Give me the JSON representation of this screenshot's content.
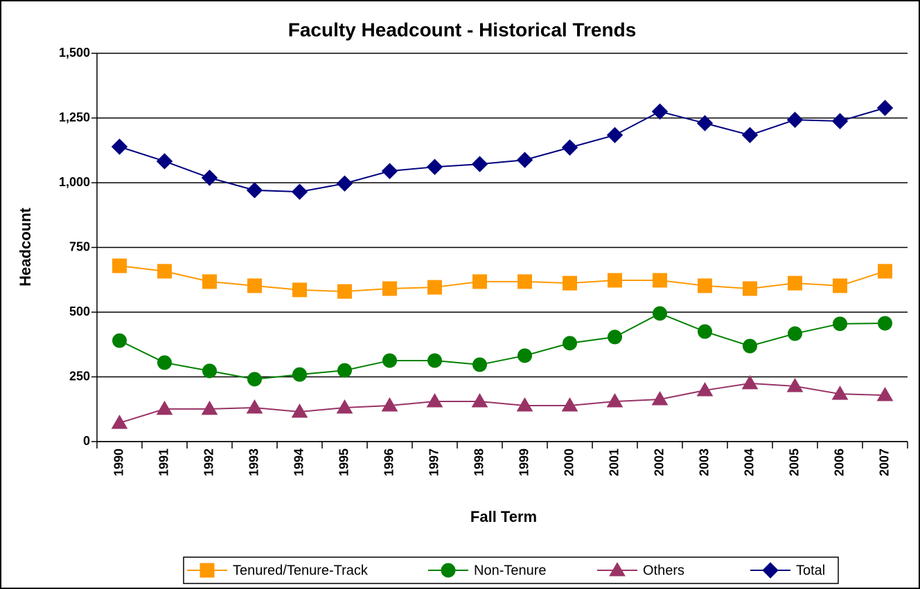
{
  "chart_data": {
    "type": "line",
    "title": "Faculty Headcount - Historical Trends",
    "x_label": "Fall Term",
    "y_label": "Headcount",
    "categories": [
      "1990",
      "1991",
      "1992",
      "1993",
      "1994",
      "1995",
      "1996",
      "1997",
      "1998",
      "1999",
      "2000",
      "2001",
      "2002",
      "2003",
      "2004",
      "2005",
      "2006",
      "2007"
    ],
    "series": [
      {
        "name": "Tenured/Tenure-Track",
        "color": "#ff9900",
        "marker": "square",
        "values": [
          679,
          658,
          618,
          602,
          586,
          580,
          591,
          596,
          618,
          618,
          612,
          623,
          623,
          602,
          591,
          612,
          602,
          658
        ]
      },
      {
        "name": "Non-Tenure",
        "color": "#008000",
        "marker": "circle",
        "values": [
          390,
          305,
          273,
          241,
          259,
          275,
          313,
          313,
          297,
          332,
          380,
          404,
          495,
          425,
          369,
          417,
          455,
          457
        ]
      },
      {
        "name": "Others",
        "color": "#993366",
        "marker": "triangle",
        "values": [
          72,
          126,
          126,
          131,
          115,
          131,
          139,
          155,
          155,
          139,
          139,
          155,
          163,
          198,
          225,
          214,
          184,
          179
        ]
      },
      {
        "name": "Total",
        "color": "#000080",
        "marker": "diamond",
        "values": [
          1139,
          1083,
          1019,
          971,
          965,
          997,
          1045,
          1061,
          1072,
          1088,
          1136,
          1184,
          1275,
          1230,
          1184,
          1243,
          1238,
          1289
        ]
      }
    ],
    "ylim": [
      0,
      1500
    ],
    "yticks": [
      0,
      250,
      500,
      750,
      {
        "value": 1000,
        "label": "1,000"
      },
      {
        "value": 1250,
        "label": "1,250"
      },
      {
        "value": 1500,
        "label": "1,500"
      }
    ],
    "grid": true,
    "legend": "bottom"
  }
}
